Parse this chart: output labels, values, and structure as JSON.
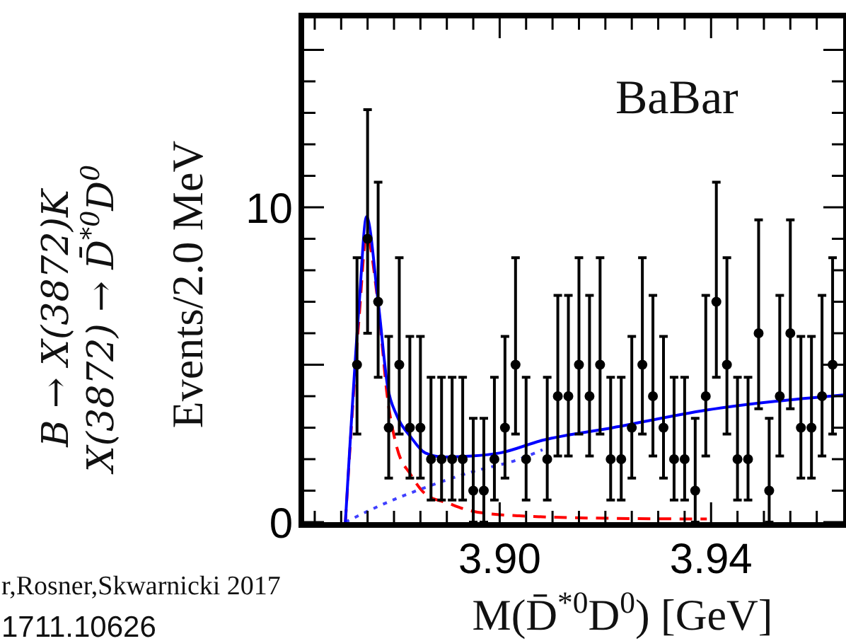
{
  "chart_data": {
    "type": "scatter",
    "xlabel": "M(D̄$^{*0}$D$^{0}$) [GeV]",
    "ylabel": "Events/2.0 MeV",
    "annotations": [
      "BaBar",
      "B → X(3872)K",
      "X(3872) → D̄$^{*0}$D$^{0}$",
      "r,Rosner,Skwarnicki 2017",
      "1711.10626"
    ],
    "xlim": [
      3.863,
      3.965
    ],
    "ylim": [
      0,
      16
    ],
    "xticks": [
      {
        "value": 3.865,
        "label": null
      },
      {
        "value": 3.87,
        "label": null
      },
      {
        "value": 3.875,
        "label": null
      },
      {
        "value": 3.88,
        "label": null
      },
      {
        "value": 3.885,
        "label": null
      },
      {
        "value": 3.89,
        "label": null
      },
      {
        "value": 3.895,
        "label": null
      },
      {
        "value": 3.9,
        "label": "3.90"
      },
      {
        "value": 3.905,
        "label": null
      },
      {
        "value": 3.91,
        "label": null
      },
      {
        "value": 3.915,
        "label": null
      },
      {
        "value": 3.92,
        "label": null
      },
      {
        "value": 3.925,
        "label": null
      },
      {
        "value": 3.93,
        "label": null
      },
      {
        "value": 3.935,
        "label": null
      },
      {
        "value": 3.94,
        "label": "3.94"
      },
      {
        "value": 3.945,
        "label": null
      },
      {
        "value": 3.95,
        "label": null
      },
      {
        "value": 3.955,
        "label": null
      },
      {
        "value": 3.96,
        "label": null
      }
    ],
    "yticks": [
      0,
      {
        "value": 1,
        "label": null
      },
      {
        "value": 2,
        "label": null
      },
      {
        "value": 3,
        "label": null
      },
      {
        "value": 4,
        "label": null
      },
      {
        "value": 5,
        "label": null
      },
      {
        "value": 6,
        "label": null
      },
      {
        "value": 7,
        "label": null
      },
      {
        "value": 8,
        "label": null
      },
      {
        "value": 9,
        "label": null
      },
      10,
      {
        "value": 11,
        "label": null
      },
      {
        "value": 12,
        "label": null
      },
      {
        "value": 13,
        "label": null
      },
      {
        "value": 14,
        "label": null
      },
      {
        "value": 15,
        "label": null
      }
    ],
    "grid": false,
    "series": [
      {
        "color": "#000000",
        "marker": "circle",
        "x": [
          3.873,
          3.875,
          3.877,
          3.879,
          3.881,
          3.883,
          3.885,
          3.887,
          3.889,
          3.891,
          3.893,
          3.895,
          3.897,
          3.899,
          3.901,
          3.903,
          3.905,
          3.909,
          3.911,
          3.913,
          3.915,
          3.917,
          3.919,
          3.921,
          3.923,
          3.925,
          3.927,
          3.929,
          3.931,
          3.933,
          3.935,
          3.937,
          3.939,
          3.941,
          3.943,
          3.945,
          3.947,
          3.949,
          3.951,
          3.953,
          3.955,
          3.957,
          3.959,
          3.961,
          3.963
        ],
        "values": [
          5,
          9,
          7,
          3,
          5,
          3,
          3,
          2,
          2,
          2,
          2,
          1,
          1,
          2,
          3,
          5,
          2,
          2,
          4,
          4,
          5,
          4,
          5,
          2,
          2,
          3,
          5,
          4,
          3,
          2,
          2,
          1,
          4,
          7,
          5,
          2,
          2,
          6,
          1,
          4,
          6,
          3,
          3,
          4,
          5
        ],
        "errors": [
          [
            2.8,
            8.4
          ],
          [
            6.0,
            13.1
          ],
          [
            4.6,
            10.8
          ],
          [
            1.4,
            5.9
          ],
          [
            2.8,
            8.4
          ],
          [
            1.4,
            5.9
          ],
          [
            1.4,
            5.9
          ],
          [
            0.7,
            4.6
          ],
          [
            0.7,
            4.6
          ],
          [
            0.7,
            4.6
          ],
          [
            0.7,
            4.6
          ],
          [
            0,
            3.3
          ],
          [
            0,
            3.3
          ],
          [
            0.7,
            4.6
          ],
          [
            1.4,
            5.9
          ],
          [
            2.8,
            8.4
          ],
          [
            0.7,
            4.6
          ],
          [
            0.7,
            4.6
          ],
          [
            2.1,
            7.2
          ],
          [
            2.1,
            7.2
          ],
          [
            2.8,
            8.4
          ],
          [
            2.1,
            7.2
          ],
          [
            2.8,
            8.4
          ],
          [
            0.7,
            4.6
          ],
          [
            0.7,
            4.6
          ],
          [
            1.4,
            5.9
          ],
          [
            2.8,
            8.4
          ],
          [
            2.1,
            7.2
          ],
          [
            1.4,
            5.9
          ],
          [
            0.7,
            4.6
          ],
          [
            0.7,
            4.6
          ],
          [
            0,
            3.3
          ],
          [
            2.1,
            7.2
          ],
          [
            4.6,
            10.8
          ],
          [
            2.8,
            8.4
          ],
          [
            0.7,
            4.6
          ],
          [
            0.7,
            4.6
          ],
          [
            3.6,
            9.6
          ],
          [
            0,
            3.3
          ],
          [
            2.1,
            7.2
          ],
          [
            3.6,
            9.6
          ],
          [
            1.4,
            5.9
          ],
          [
            1.4,
            5.9
          ],
          [
            2.1,
            7.2
          ],
          [
            2.8,
            8.4
          ]
        ]
      },
      {
        "type": "line",
        "color": "#ff0000",
        "line_style": "dashed",
        "x": [
          3.8708,
          3.8734,
          3.8748,
          3.877,
          3.8788,
          3.8805,
          3.8832,
          3.8859,
          3.8903,
          3.8948,
          3.9037,
          3.9214,
          3.9392
        ],
        "values": [
          0,
          6.5,
          9.1,
          6.9,
          3.9,
          2.4,
          1.5,
          0.9,
          0.6,
          0.35,
          0.2,
          0.12,
          0.1
        ]
      },
      {
        "type": "line",
        "color": "#4040ff",
        "line_style": "dotted",
        "x": [
          3.8708,
          3.877,
          3.8859,
          3.8948,
          3.9037,
          3.9081
        ],
        "values": [
          0,
          0.5,
          1.1,
          1.6,
          2.0,
          2.3
        ]
      },
      {
        "type": "line",
        "color": "#0000ff",
        "line_style": "solid",
        "x": [
          3.8708,
          3.8734,
          3.8748,
          3.877,
          3.8788,
          3.8805,
          3.8832,
          3.8859,
          3.8894,
          3.8948,
          3.9001,
          3.9081,
          3.9214,
          3.9392,
          3.965
        ],
        "values": [
          0,
          6.9,
          9.7,
          7.0,
          4.3,
          3.4,
          2.7,
          2.2,
          2.07,
          2.1,
          2.2,
          2.6,
          3.0,
          3.56,
          4.04
        ]
      }
    ]
  }
}
